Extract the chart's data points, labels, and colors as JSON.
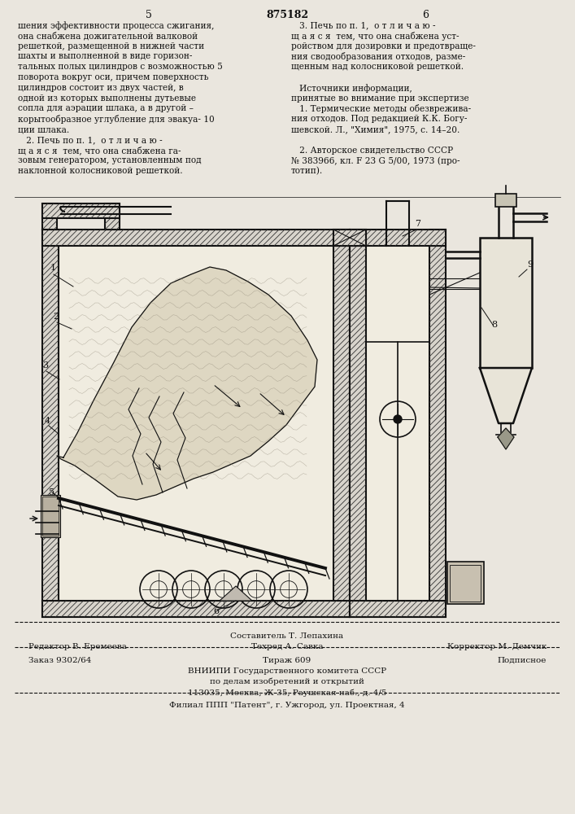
{
  "bg_color": "#eae6de",
  "page_number_left": "5",
  "page_number_center": "875182",
  "page_number_right": "6",
  "left_column_text": [
    "шения эффективности процесса сжигания,",
    "она снабжена дожигательной валковой",
    "решеткой, размещенной в нижней части",
    "шахты и выполненной в виде горизон-",
    "тальных полых цилиндров с возможностью 5",
    "поворота вокруг оси, причем поверхность",
    "цилиндров состоит из двух частей, в",
    "одной из которых выполнены дутьевые",
    "сопла для аэрации шлака, а в другой –",
    "корытообразное углубление для эвакуа- 10",
    "ции шлака.",
    "   2. Печь по п. 1,  о т л и ч а ю -",
    "щ а я с я  тем, что она снабжена га-",
    "зовым генератором, установленным под",
    "наклонной колосниковой решеткой."
  ],
  "right_column_text": [
    "   3. Печь по п. 1,  о т л и ч а ю -",
    "щ а я с я  тем, что она снабжена уст-",
    "ройством для дозировки и предотвраще-",
    "ния сводообразования отходов, разме-",
    "щенным над колосниковой решеткой.",
    "",
    "   Источники информации,",
    "принятые во внимание при экспертизе",
    "   1. Термические методы обезврежива-",
    "ния отходов. Под редакцией К.К. Богу-",
    "шевской. Л., \"Химия\", 1975, с. 14–20.",
    "",
    "   2. Авторское свидетельство СССР",
    "№ 383966, кл. F 23 G 5/00, 1973 (про-",
    "тотип)."
  ],
  "footer_line1_center": "Составитель Т. Лепахина",
  "footer_line2_left": "Редактор В. Еремеева",
  "footer_line2_center": "Техред А. Савка",
  "footer_line2_right": "Корректор М. Демчик",
  "footer_order": "Заказ 9302/64",
  "footer_tirazh": "Тираж 609",
  "footer_podpisnoe": "Подписное",
  "footer_vniip": "ВНИИПИ Государственного комитета СССР",
  "footer_dela": "по делам изобретений и открытий",
  "footer_addr": "113035, Москва, Ж-35, Раушская наб., д. 4/5",
  "footer_filial": "Филиал ППП \"Патент\", г. Ужгород, ул. Проектная, 4"
}
